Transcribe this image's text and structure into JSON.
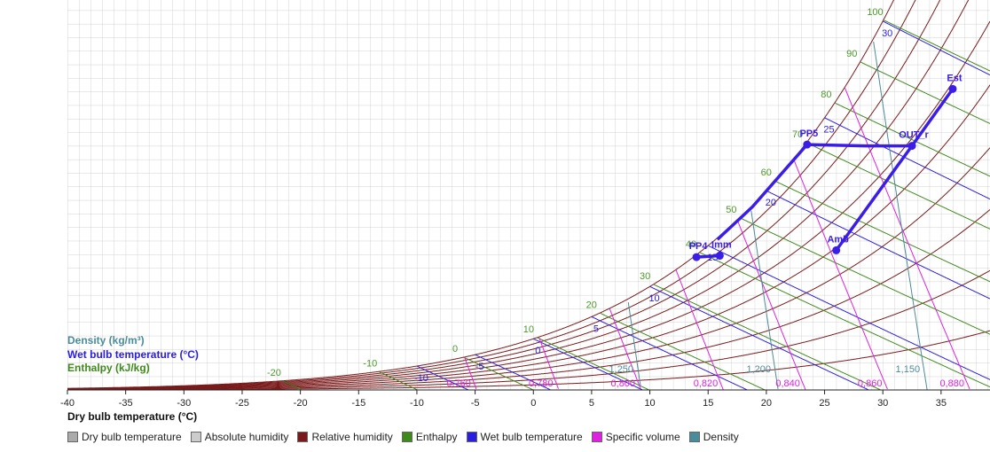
{
  "chart_data": {
    "type": "psychrometric",
    "xlabel": "Dry bulb temperature (°C)",
    "xlim": [
      -40,
      39.2
    ],
    "xticks": [
      -40,
      -35,
      -30,
      -25,
      -20,
      -15,
      -10,
      -5,
      0,
      5,
      10,
      15,
      20,
      25,
      30,
      35
    ],
    "ylim": [
      0,
      28.76
    ],
    "grid": true,
    "relative_humidity": {
      "color": "#7a1a1a",
      "values": [
        10,
        20,
        30,
        40,
        50,
        60,
        70,
        80,
        90,
        100
      ]
    },
    "enthalpy": {
      "name": "Enthalpy (kJ/kg)",
      "color": "#3f8a1c",
      "values": [
        -20,
        -10,
        0,
        10,
        20,
        30,
        40,
        50,
        60,
        70,
        80,
        90,
        100
      ]
    },
    "wet_bulb": {
      "name": "Wet bulb temperature (°C)",
      "color": "#2a1ee0",
      "values": [
        -10,
        -5,
        0,
        5,
        10,
        15,
        20,
        25,
        30
      ]
    },
    "specific_volume": {
      "color": "#e020e0",
      "values": [
        {
          "value": 0.76,
          "label": "0,760"
        },
        {
          "value": 0.78,
          "label": "0,780"
        },
        {
          "value": 0.8,
          "label": "0,800"
        },
        {
          "value": 0.82,
          "label": "0,820"
        },
        {
          "value": 0.84,
          "label": "0,840"
        },
        {
          "value": 0.86,
          "label": "0,860"
        },
        {
          "value": 0.88,
          "label": "0,880"
        }
      ]
    },
    "density": {
      "name": "Density (kg/m³)",
      "color": "#4a8c99",
      "values": [
        {
          "value": 1.25,
          "label": "1,250"
        },
        {
          "value": 1.2,
          "label": "1,200"
        },
        {
          "value": 1.15,
          "label": "1,150"
        }
      ]
    },
    "process_color": "#3a1ee8",
    "points": [
      {
        "name": "Est",
        "x": 36,
        "y": 22.2
      },
      {
        "name": "OUT_r",
        "x": 32.5,
        "y": 18.0
      },
      {
        "name": "PP5",
        "x": 23.5,
        "y": 18.1
      },
      {
        "name": "PP4",
        "x": 14,
        "y": 9.8
      },
      {
        "name": "Imm",
        "x": 16,
        "y": 9.9
      },
      {
        "name": "Amb",
        "x": 26,
        "y": 10.3
      }
    ],
    "process_lines": [
      {
        "x": [
          26,
          32.5
        ],
        "y": [
          10.3,
          18.0
        ]
      },
      {
        "x": [
          32.5,
          36
        ],
        "y": [
          18.0,
          22.2
        ]
      },
      {
        "x": [
          32.5,
          28.5,
          23.5,
          18.8,
          15.8
        ],
        "y": [
          18.0,
          18.0,
          18.1,
          13.5,
          11.1
        ]
      },
      {
        "x": [
          14,
          16
        ],
        "y": [
          9.8,
          9.9
        ]
      }
    ],
    "legend": [
      {
        "label": "Dry bulb temperature",
        "color": "#aaaaaa"
      },
      {
        "label": "Absolute humidity",
        "color": "#cccccc"
      },
      {
        "label": "Relative humidity",
        "color": "#7a1a1a"
      },
      {
        "label": "Enthalpy",
        "color": "#3f8a1c"
      },
      {
        "label": "Wet bulb temperature",
        "color": "#2a1ee0"
      },
      {
        "label": "Specific volume",
        "color": "#e020e0"
      },
      {
        "label": "Density",
        "color": "#4a8c99"
      }
    ]
  }
}
